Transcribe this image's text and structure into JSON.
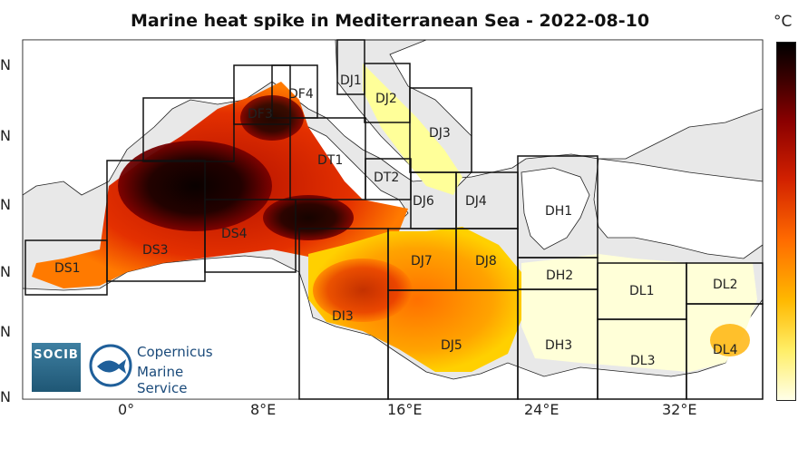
{
  "title": "Marine heat spike in Mediterranean Sea - 2022-08-10",
  "colorbar": {
    "unit": "°C"
  },
  "x_ticks": [
    "0°",
    "8°E",
    "16°E",
    "24°E",
    "32°E"
  ],
  "y_ticks": [
    "N",
    "N",
    "N",
    "N",
    "N",
    "N"
  ],
  "regions": [
    "DJ1",
    "DJ2",
    "DJ3",
    "DF4",
    "DF3",
    "DT1",
    "DT2",
    "DJ6",
    "DJ4",
    "DH1",
    "DS3",
    "DS1",
    "DS4",
    "DJ7",
    "DJ8",
    "DH2",
    "DL1",
    "DL2",
    "DI3",
    "DJ5",
    "DH3",
    "DL3",
    "DL4"
  ],
  "logos": {
    "socib": "SOCIB",
    "copernicus_line1": "Copernicus",
    "copernicus_line2": "Marine Service"
  },
  "colors": {
    "land": "#ffffff",
    "background": "#e8e8e8",
    "hot": "#000000",
    "warm": "#d12000",
    "mild": "#ffb800",
    "cool": "#ffffe8"
  }
}
